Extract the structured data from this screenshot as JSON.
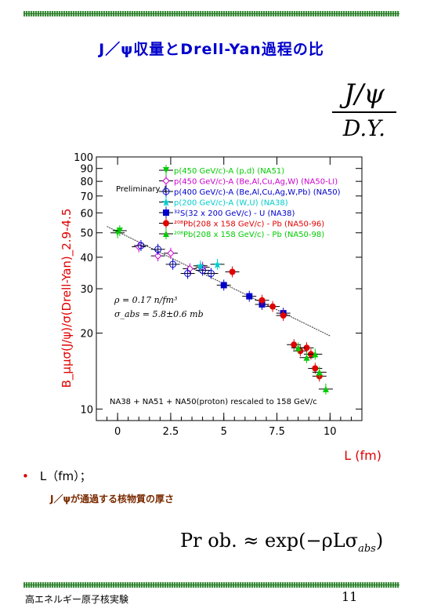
{
  "slide": {
    "title": "J／ψ収量とDrell-Yan過程の比",
    "fraction": {
      "numerator": "J/ψ",
      "denominator": "D.Y."
    },
    "bullet": "L（fm）；",
    "sub_bullet": "J／ψが通過する核物質の厚さ",
    "formula": {
      "lhs": "Pr ob. ≈ exp(−ρLσ",
      "subscript": "abs",
      "rhs": ")"
    },
    "footer_left": "高エネルギー原子核実験",
    "page_number": "11"
  },
  "colors": {
    "title": "#0000cc",
    "rule": "#3a8a3a",
    "axis_label": "#e00000",
    "na51": "#00cc00",
    "na50_li": "#cc00cc",
    "na50_p": "#0000cc",
    "na38_p": "#00cccc",
    "na38_s": "#0000cc",
    "na50_96": "#e00000",
    "na50_98": "#00cc00"
  },
  "chart_data": {
    "type": "scatter",
    "yscale": "log",
    "ylabel": "B_μμσ(J/ψ)/σ(Drell-Yan)_2.9-4.5",
    "xlabel": "L (fm)",
    "xlim": [
      -1,
      11.5
    ],
    "ylim": [
      9,
      100
    ],
    "x_ticks": [
      "0",
      "2.5",
      "5",
      "7.5",
      "10"
    ],
    "y_ticks": [
      "10",
      "20",
      "30",
      "40",
      "50",
      "60",
      "70",
      "80",
      "90",
      "100"
    ],
    "legend_header": "Preliminary {",
    "annotations": {
      "rho": "ρ = 0.17 n/fm³",
      "sigma": "σ_abs = 5.8±0.6 mb",
      "bottom": "NA38 + NA51 + NA50(proton) rescaled to 158 GeV/c"
    },
    "fit_line": {
      "x0": -0.5,
      "y0": 53,
      "x1": 10,
      "y1": 19.5
    },
    "series": [
      {
        "name": "p(450 GeV/c)-A (p,d) (NA51)",
        "marker": "triangle-down",
        "color": "#00cc00",
        "points": [
          [
            0.0,
            50
          ],
          [
            0.1,
            51
          ]
        ]
      },
      {
        "name": "p(450 GeV/c)-A (Be,Al,Cu,Ag,W) (NA50-LI)",
        "marker": "diamond-open",
        "color": "#cc00cc",
        "points": [
          [
            1.0,
            44
          ],
          [
            1.9,
            40.5
          ],
          [
            2.5,
            41.5
          ],
          [
            3.4,
            36
          ],
          [
            4.0,
            36.5
          ]
        ]
      },
      {
        "name": "p(400 GeV/c)-A (Be,Al,Cu,Ag,W,Pb) (NA50)",
        "marker": "cross-open",
        "color": "#0000cc",
        "points": [
          [
            1.1,
            44.5
          ],
          [
            1.9,
            43
          ],
          [
            2.6,
            37.5
          ],
          [
            3.3,
            34.5
          ],
          [
            4.0,
            35.5
          ],
          [
            4.4,
            34.5
          ]
        ]
      },
      {
        "name": "p(200 GeV/c)-A (W,U) (NA38)",
        "marker": "star",
        "color": "#00cccc",
        "points": [
          [
            3.9,
            37
          ],
          [
            4.7,
            37.5
          ]
        ]
      },
      {
        "name": "³²S(32 x 200 GeV/c) - U (NA38)",
        "marker": "square",
        "color": "#0000cc",
        "points": [
          [
            5.0,
            31
          ],
          [
            6.2,
            28
          ],
          [
            6.8,
            26
          ],
          [
            7.8,
            24
          ]
        ]
      },
      {
        "name": "²⁰⁸Pb(208 x 158 GeV/c) - Pb (NA50-96)",
        "marker": "circle",
        "color": "#e00000",
        "points": [
          [
            5.4,
            35
          ],
          [
            6.8,
            27
          ],
          [
            7.3,
            25.5
          ],
          [
            7.8,
            23.5
          ],
          [
            8.3,
            18
          ],
          [
            8.6,
            17
          ],
          [
            8.9,
            17.5
          ],
          [
            9.1,
            16.5
          ],
          [
            9.3,
            14.5
          ],
          [
            9.5,
            13.5
          ]
        ]
      },
      {
        "name": "²⁰⁸Pb(208 x 158 GeV/c) - Pb (NA50-98)",
        "marker": "triangle",
        "color": "#00cc00",
        "points": [
          [
            8.5,
            17.5
          ],
          [
            8.9,
            16
          ],
          [
            9.3,
            16.5
          ],
          [
            9.5,
            14
          ],
          [
            9.8,
            12
          ]
        ]
      }
    ]
  }
}
